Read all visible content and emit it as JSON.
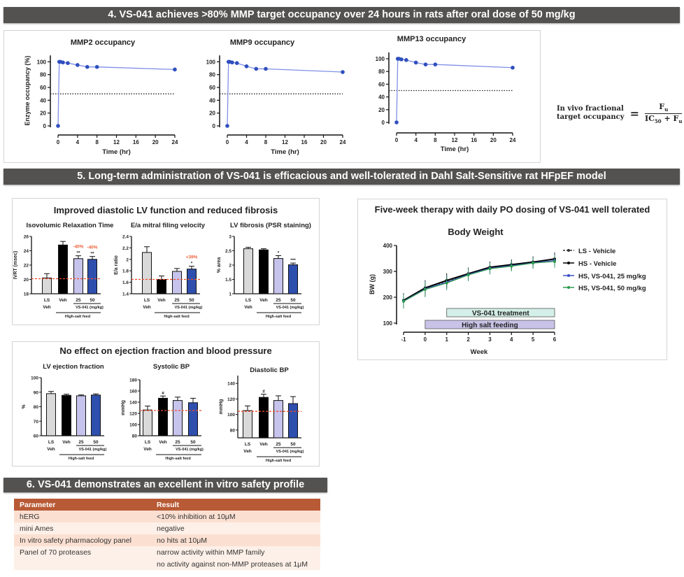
{
  "sections": {
    "s4": "4.  VS-041 achieves >80% MMP target occupancy over 24 hours in rats after oral dose of 50 mg/kg",
    "s5": "5.  Long-term administration of VS-041 is efficacious and well-tolerated in Dahl Salt-Sensitive rat HFpEF model",
    "s6": "6.  VS-041 demonstrates an excellent in vitro safety profile"
  },
  "formula": {
    "lhs_line1": "In vivo fractional",
    "lhs_line2": "target occupancy",
    "equals": "=",
    "numerator": "F",
    "numerator_sub": "u",
    "denominator_a": "IC",
    "denominator_a_sub": "50",
    "denominator_b": " + F",
    "denominator_b_sub": "u"
  },
  "panels": {
    "diastolic_title": "Improved diastolic LV function and reduced fibrosis",
    "ef_bp_title": "No effect on ejection fraction and blood pressure",
    "bw_title": "Five-week therapy with daily PO dosing of VS-041 well tolerated"
  },
  "safety_table": {
    "headers": [
      "Parameter",
      "Result"
    ],
    "rows": [
      [
        "hERG",
        "<10% inhibition at 10μM"
      ],
      [
        "mini Ames",
        "negative"
      ],
      [
        "In vitro safety pharmacology panel",
        "no hits at 10μM"
      ],
      [
        "Panel of 70 proteases",
        "narrow activity within MMP family"
      ],
      [
        "",
        "no activity against non-MMP proteases at 1μM"
      ]
    ],
    "header_color": "#b85a35"
  },
  "chart_data": [
    {
      "type": "line",
      "title": "MMP2 occupancy",
      "xlabel": "Time (hr)",
      "ylabel": "Enzyme occupancy (%)",
      "x": [
        0,
        0.25,
        0.5,
        1,
        2,
        4,
        6,
        8,
        24
      ],
      "y": [
        0,
        100,
        100,
        99,
        98,
        95,
        92,
        92,
        88
      ],
      "xlim": [
        0,
        24
      ],
      "ylim": [
        0,
        110
      ],
      "xticks": [
        0,
        4,
        8,
        12,
        16,
        20,
        24
      ],
      "yticks": [
        0,
        20,
        40,
        60,
        80,
        100
      ],
      "reference_line": 50,
      "color": "#2f4fbf"
    },
    {
      "type": "line",
      "title": "MMP9 occupancy",
      "xlabel": "Time (hr)",
      "ylabel": "",
      "x": [
        0,
        0.25,
        0.5,
        1,
        2,
        4,
        6,
        8,
        24
      ],
      "y": [
        0,
        100,
        100,
        99,
        98,
        93,
        89,
        89,
        84
      ],
      "xlim": [
        0,
        24
      ],
      "ylim": [
        0,
        110
      ],
      "xticks": [
        0,
        4,
        8,
        12,
        16,
        20,
        24
      ],
      "yticks": [
        0,
        20,
        40,
        60,
        80,
        100
      ],
      "reference_line": 50,
      "color": "#2f4fbf"
    },
    {
      "type": "line",
      "title": "MMP13 occupancy",
      "xlabel": "Time (hr)",
      "ylabel": "",
      "x": [
        0,
        0.25,
        0.5,
        1,
        2,
        4,
        6,
        8,
        24
      ],
      "y": [
        0,
        100,
        100,
        99,
        98,
        94,
        91,
        91,
        86
      ],
      "xlim": [
        0,
        24
      ],
      "ylim": [
        0,
        110
      ],
      "xticks": [
        0,
        4,
        8,
        12,
        16,
        20,
        24
      ],
      "yticks": [
        0,
        20,
        40,
        60,
        80,
        100
      ],
      "reference_line": 50,
      "color": "#2f4fbf"
    },
    {
      "type": "bar",
      "title": "Isovolumic Relaxation Time",
      "ylabel": "IVRT (msec)",
      "categories": [
        [
          "LS",
          "Veh"
        ],
        [
          "Veh"
        ],
        [
          "25"
        ],
        [
          "50"
        ]
      ],
      "values": [
        20.2,
        24.8,
        22.9,
        22.8
      ],
      "errors": [
        0.6,
        0.5,
        0.4,
        0.4
      ],
      "ylim": [
        18,
        26
      ],
      "yticks": [
        18,
        20,
        22,
        24,
        26
      ],
      "reference_line": 20.1,
      "significance": [
        "",
        "",
        "**",
        "**"
      ],
      "change_labels": [
        "",
        "",
        "-40%",
        "-40%"
      ],
      "group_labels": [
        "VS-041 (mg/kg)",
        "High-salt feed"
      ]
    },
    {
      "type": "bar",
      "title": "E/a mitral filing velocity",
      "ylabel": "E/a ratio",
      "categories": [
        [
          "LS",
          "Veh"
        ],
        [
          "Veh"
        ],
        [
          "25"
        ],
        [
          "50"
        ]
      ],
      "values": [
        2.12,
        1.65,
        1.79,
        1.83
      ],
      "errors": [
        0.1,
        0.06,
        0.05,
        0.05
      ],
      "ylim": [
        1.4,
        2.4
      ],
      "yticks": [
        1.4,
        1.6,
        1.8,
        2.0,
        2.2,
        2.4
      ],
      "reference_line": 1.65,
      "significance": [
        "",
        "",
        "",
        "*"
      ],
      "change_labels": [
        "",
        "",
        "",
        "+39%"
      ],
      "group_labels": [
        "VS-041 (mg/kg)",
        "High-salt feed"
      ]
    },
    {
      "type": "bar",
      "title": "LV fibrosis (PSR staining)",
      "ylabel": "% area",
      "categories": [
        [
          "LS",
          "Veh"
        ],
        [
          "Veh"
        ],
        [
          "25"
        ],
        [
          "50"
        ]
      ],
      "values": [
        2.57,
        2.53,
        2.23,
        2.01
      ],
      "errors": [
        0.05,
        0.04,
        0.1,
        0.06
      ],
      "ylim": [
        1.0,
        3.0
      ],
      "yticks": [
        1.0,
        1.5,
        2.0,
        2.5,
        3.0
      ],
      "significance": [
        "",
        "",
        "*",
        "***"
      ],
      "change_labels": [
        "",
        "",
        "",
        ""
      ],
      "group_labels": [
        "VS-041 (mg/kg)",
        "High-salt feed"
      ]
    },
    {
      "type": "bar",
      "title": "LV ejection fraction",
      "ylabel": "%",
      "categories": [
        [
          "LS",
          "Veh"
        ],
        [
          "Veh"
        ],
        [
          "25"
        ],
        [
          "50"
        ]
      ],
      "values": [
        89,
        87.8,
        87.5,
        88
      ],
      "errors": [
        1.5,
        0.8,
        0.6,
        0.8
      ],
      "ylim": [
        60,
        100
      ],
      "yticks": [
        60,
        70,
        80,
        90,
        100
      ],
      "significance": [
        "",
        "",
        "",
        ""
      ],
      "change_labels": [
        "",
        "",
        "",
        ""
      ],
      "group_labels": [
        "VS-041 (mg/kg)",
        "High-salt feed"
      ]
    },
    {
      "type": "bar",
      "title": "Systolic BP",
      "ylabel": "mmHg",
      "categories": [
        [
          "LS",
          "Veh"
        ],
        [
          "Veh"
        ],
        [
          "25"
        ],
        [
          "50"
        ]
      ],
      "values": [
        126,
        147,
        143,
        139
      ],
      "errors": [
        7,
        4,
        6,
        8
      ],
      "ylim": [
        80,
        180
      ],
      "yticks": [
        80,
        100,
        120,
        140,
        160,
        180
      ],
      "reference_line": 125,
      "significance": [
        "",
        "#",
        "",
        ""
      ],
      "change_labels": [
        "",
        "",
        "",
        ""
      ],
      "group_labels": [
        "VS-041 (mg/kg)",
        "High-salt feed"
      ]
    },
    {
      "type": "bar",
      "title": "Diastolic BP",
      "ylabel": "mmHg",
      "categories": [
        [
          "LS",
          "Veh"
        ],
        [
          "Veh"
        ],
        [
          "25"
        ],
        [
          "50"
        ]
      ],
      "values": [
        105,
        122,
        118,
        114
      ],
      "errors": [
        6,
        4,
        6,
        9
      ],
      "ylim": [
        70,
        150
      ],
      "yticks": [
        80,
        100,
        120,
        140
      ],
      "reference_line": 104,
      "significance": [
        "",
        "#",
        "",
        ""
      ],
      "change_labels": [
        "",
        "",
        "",
        ""
      ],
      "group_labels": [
        "VS-041 (mg/kg)",
        "High-salt feed"
      ]
    },
    {
      "type": "line",
      "title": "Body Weight",
      "xlabel": "Week",
      "ylabel": "BW (g)",
      "x": [
        -1,
        0,
        1,
        2,
        3,
        4,
        5,
        6
      ],
      "xlim": [
        -1,
        6
      ],
      "ylim": [
        100,
        400
      ],
      "xticks": [
        -1,
        0,
        1,
        2,
        3,
        4,
        5,
        6
      ],
      "yticks": [
        100,
        200,
        300,
        400
      ],
      "legend": "right",
      "series": [
        {
          "name": "LS - Vehicle",
          "values": [
            187,
            235,
            262,
            290,
            315,
            325,
            335,
            347
          ],
          "color": "#333333",
          "dashed": true
        },
        {
          "name": "HS - Vehicle",
          "values": [
            188,
            236,
            265,
            291,
            316,
            326,
            336,
            348
          ],
          "color": "#000000"
        },
        {
          "name": "HS, VS-041, 25 mg/kg",
          "values": [
            185,
            232,
            258,
            288,
            312,
            322,
            333,
            342
          ],
          "color": "#3a4fc4"
        },
        {
          "name": "HS, VS-041, 50 mg/kg",
          "values": [
            184,
            230,
            255,
            286,
            310,
            320,
            332,
            338
          ],
          "color": "#2e9a4e"
        }
      ],
      "error": [
        28,
        30,
        28,
        24,
        22,
        20,
        22,
        25
      ],
      "periods": [
        {
          "label": "VS-041 treatment",
          "start": 1,
          "end": 6,
          "color": "#d3efe7"
        },
        {
          "label": "High salt feeding",
          "start": 0,
          "end": 6,
          "color": "#c9c3e8"
        }
      ]
    }
  ],
  "bar_colors": [
    "#d9d9d9",
    "#000000",
    "#c6c3ec",
    "#2f4fae"
  ],
  "reference_color": "#f04a2a",
  "annotation_color": "#f0603a"
}
